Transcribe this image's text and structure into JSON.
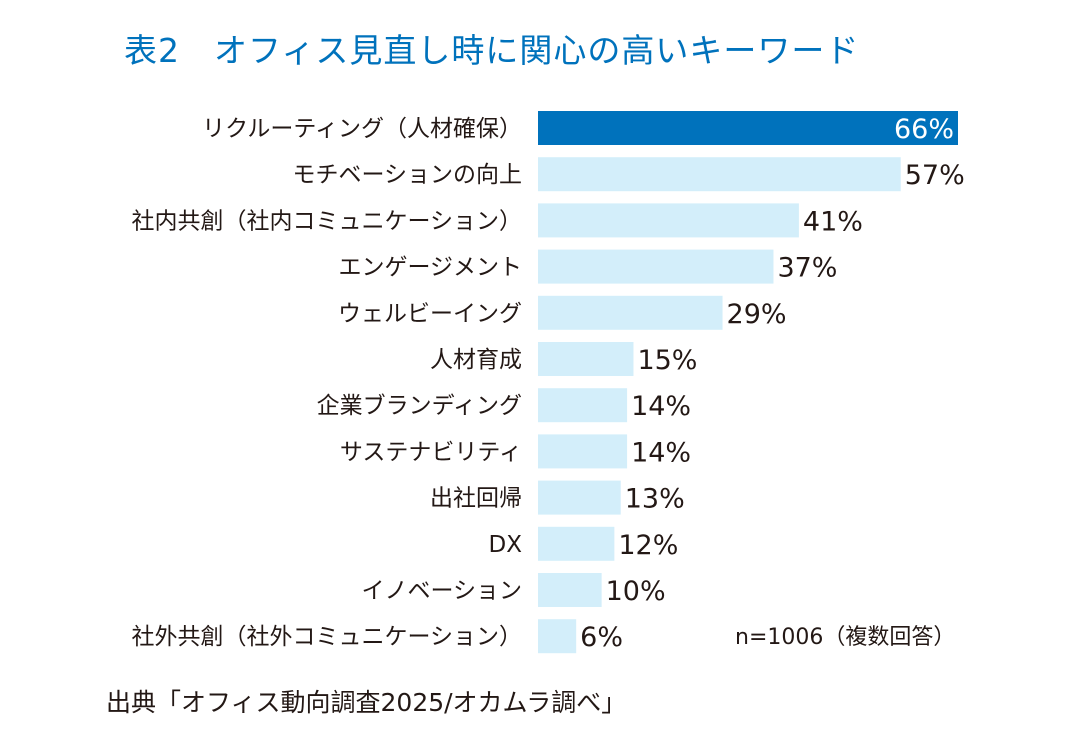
{
  "title": "表2　オフィス見直し時に関心の高いキーワード",
  "note": "n=1006（複数回答）",
  "source": "出典「オフィス動向調査2025/オカムラ調べ」",
  "colors": {
    "title": "#0072bc",
    "highlight_bar": "#0072bc",
    "bar": "#d3eefa",
    "text": "#231815"
  },
  "chart_data": {
    "type": "bar",
    "orientation": "horizontal",
    "title": "表2　オフィス見直し時に関心の高いキーワード",
    "categories": [
      "リクルーティング（人材確保）",
      "モチベーションの向上",
      "社内共創（社内コミュニケーション）",
      "エンゲージメント",
      "ウェルビーイング",
      "人材育成",
      "企業ブランディング",
      "サステナビリティ",
      "出社回帰",
      "DX",
      "イノベーション",
      "社外共創（社外コミュニケーション）"
    ],
    "values": [
      66,
      57,
      41,
      37,
      29,
      15,
      14,
      14,
      13,
      12,
      10,
      6
    ],
    "value_labels": [
      "66%",
      "57%",
      "41%",
      "37%",
      "29%",
      "15%",
      "14%",
      "14%",
      "13%",
      "12%",
      "10%",
      "6%"
    ],
    "unit": "%",
    "highlight_index": 0,
    "grid": false,
    "xlim": [
      0,
      66
    ]
  }
}
